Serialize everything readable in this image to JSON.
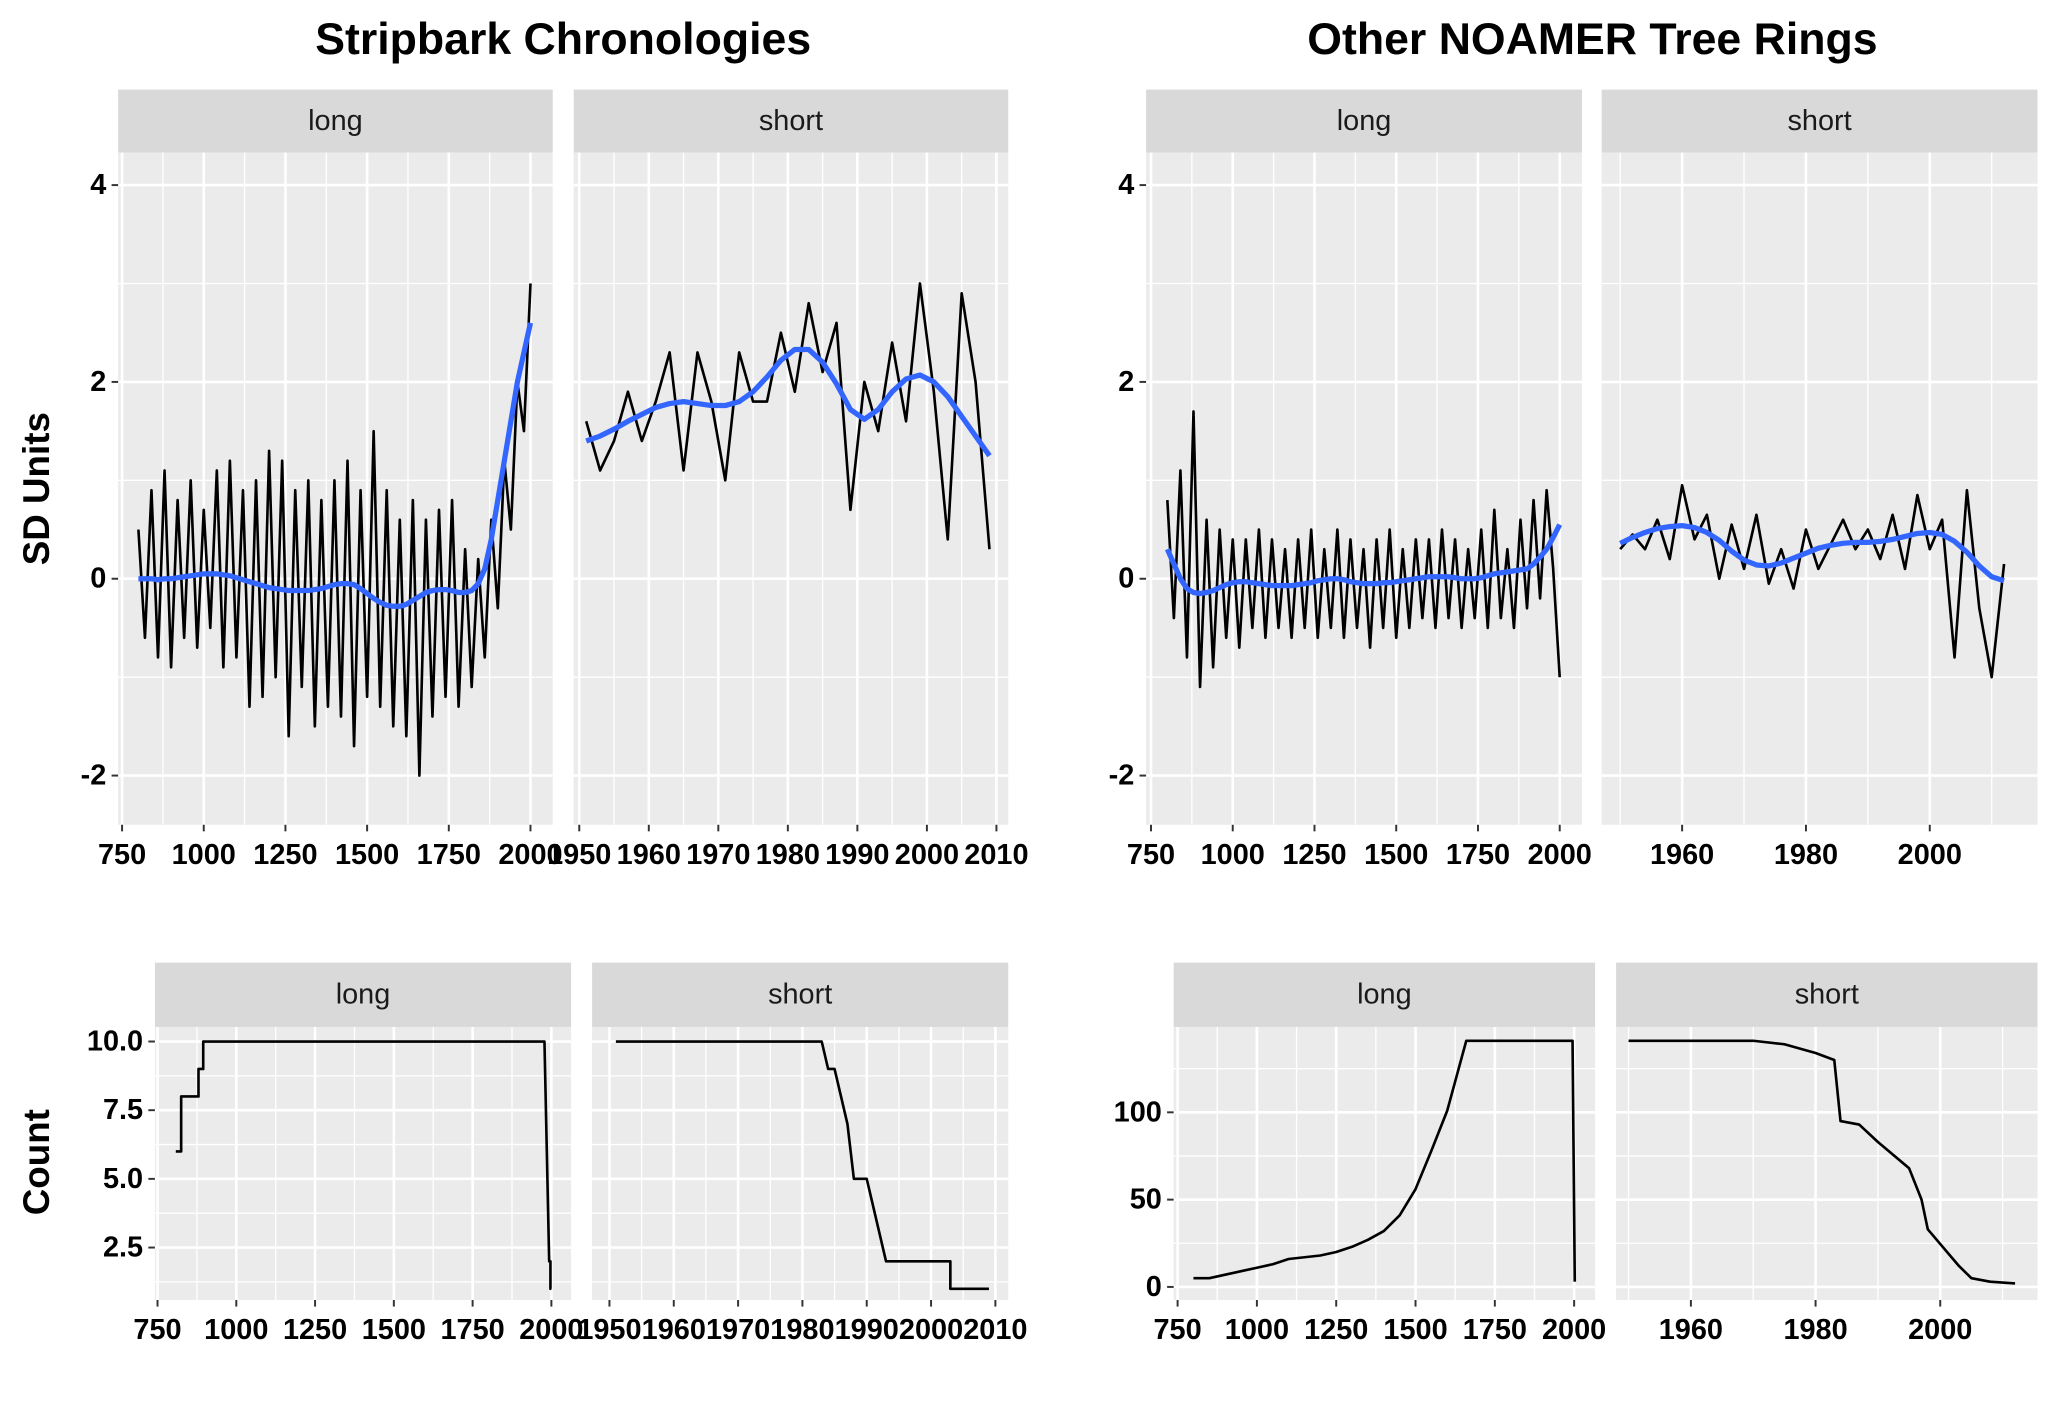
{
  "titles": [
    "Stripbark Chronologies",
    "Other NOAMER Tree Rings"
  ],
  "ylabels": [
    "SD Units",
    "Count"
  ],
  "chart_data": [
    {
      "type": "line",
      "strip": "long",
      "x": [
        800,
        820,
        840,
        860,
        880,
        900,
        920,
        940,
        960,
        980,
        1000,
        1020,
        1040,
        1060,
        1080,
        1100,
        1120,
        1140,
        1160,
        1180,
        1200,
        1220,
        1240,
        1260,
        1280,
        1300,
        1320,
        1340,
        1360,
        1380,
        1400,
        1420,
        1440,
        1460,
        1480,
        1500,
        1520,
        1540,
        1560,
        1580,
        1600,
        1620,
        1640,
        1660,
        1680,
        1700,
        1720,
        1740,
        1760,
        1780,
        1800,
        1820,
        1840,
        1860,
        1880,
        1900,
        1920,
        1940,
        1960,
        1980,
        2000
      ],
      "series": [
        {
          "color": "#000000",
          "values": [
            0.5,
            -0.6,
            0.9,
            -0.8,
            1.1,
            -0.9,
            0.8,
            -0.6,
            1.0,
            -0.7,
            0.7,
            -0.5,
            1.1,
            -0.9,
            1.2,
            -0.8,
            0.9,
            -1.3,
            1.0,
            -1.2,
            1.3,
            -1.0,
            1.2,
            -1.6,
            0.9,
            -1.1,
            1.0,
            -1.5,
            0.8,
            -1.3,
            1.0,
            -1.4,
            1.2,
            -1.7,
            0.9,
            -1.2,
            1.5,
            -1.3,
            0.9,
            -1.5,
            0.6,
            -1.6,
            0.8,
            -2.0,
            0.6,
            -1.4,
            0.7,
            -1.2,
            0.8,
            -1.3,
            0.3,
            -1.1,
            0.2,
            -0.8,
            0.6,
            -0.3,
            1.2,
            0.5,
            2.0,
            1.5,
            3.0
          ]
        },
        {
          "color": "#3366ff",
          "values": [
            0,
            0,
            0,
            -0.01,
            0,
            0,
            0.01,
            0.02,
            0.03,
            0.04,
            0.05,
            0.05,
            0.05,
            0.04,
            0.03,
            0.01,
            -0.01,
            -0.03,
            -0.05,
            -0.07,
            -0.09,
            -0.1,
            -0.11,
            -0.12,
            -0.12,
            -0.12,
            -0.12,
            -0.11,
            -0.1,
            -0.08,
            -0.06,
            -0.05,
            -0.05,
            -0.06,
            -0.1,
            -0.15,
            -0.2,
            -0.24,
            -0.27,
            -0.28,
            -0.28,
            -0.26,
            -0.22,
            -0.18,
            -0.14,
            -0.12,
            -0.11,
            -0.11,
            -0.12,
            -0.14,
            -0.14,
            -0.12,
            -0.05,
            0.1,
            0.4,
            0.8,
            1.2,
            1.6,
            2.0,
            2.3,
            2.6
          ]
        }
      ],
      "xlim": [
        738,
        2068
      ],
      "xticks": [
        750,
        1000,
        1250,
        1500,
        1750,
        2000
      ],
      "ylim": [
        -2.5,
        4.33
      ],
      "yticks": [
        -2,
        0,
        2,
        4
      ],
      "grid": true,
      "show_yticks": true
    },
    {
      "type": "line",
      "strip": "short",
      "x": [
        1951,
        1953,
        1955,
        1957,
        1959,
        1961,
        1963,
        1965,
        1967,
        1969,
        1971,
        1973,
        1975,
        1977,
        1979,
        1981,
        1983,
        1985,
        1987,
        1989,
        1991,
        1993,
        1995,
        1997,
        1999,
        2001,
        2003,
        2005,
        2007,
        2009
      ],
      "series": [
        {
          "color": "#000000",
          "values": [
            1.6,
            1.1,
            1.4,
            1.9,
            1.4,
            1.8,
            2.3,
            1.1,
            2.3,
            1.8,
            1.0,
            2.3,
            1.8,
            1.8,
            2.5,
            1.9,
            2.8,
            2.1,
            2.6,
            0.7,
            2.0,
            1.5,
            2.4,
            1.6,
            3.0,
            1.9,
            0.4,
            2.9,
            2.0,
            0.3
          ]
        },
        {
          "color": "#3366ff",
          "values": [
            1.4,
            1.45,
            1.52,
            1.6,
            1.67,
            1.74,
            1.78,
            1.8,
            1.78,
            1.76,
            1.76,
            1.8,
            1.9,
            2.05,
            2.22,
            2.33,
            2.33,
            2.2,
            1.98,
            1.72,
            1.62,
            1.72,
            1.9,
            2.03,
            2.07,
            2.0,
            1.85,
            1.65,
            1.45,
            1.25
          ]
        }
      ],
      "xlim": [
        1949.2,
        2011.7
      ],
      "xticks": [
        1950,
        1960,
        1970,
        1980,
        1990,
        2000,
        2010
      ],
      "ylim": [
        -2.5,
        4.33
      ],
      "yticks": [
        -2,
        0,
        2,
        4
      ],
      "grid": true,
      "show_yticks": false
    },
    {
      "type": "line",
      "strip": "long",
      "x": [
        800,
        820,
        840,
        860,
        880,
        900,
        920,
        940,
        960,
        980,
        1000,
        1020,
        1040,
        1060,
        1080,
        1100,
        1120,
        1140,
        1160,
        1180,
        1200,
        1220,
        1240,
        1260,
        1280,
        1300,
        1320,
        1340,
        1360,
        1380,
        1400,
        1420,
        1440,
        1460,
        1480,
        1500,
        1520,
        1540,
        1560,
        1580,
        1600,
        1620,
        1640,
        1660,
        1680,
        1700,
        1720,
        1740,
        1760,
        1780,
        1800,
        1820,
        1840,
        1860,
        1880,
        1900,
        1920,
        1940,
        1960,
        1980,
        2000
      ],
      "series": [
        {
          "color": "#000000",
          "values": [
            0.8,
            -0.4,
            1.1,
            -0.8,
            1.7,
            -1.1,
            0.6,
            -0.9,
            0.5,
            -0.6,
            0.4,
            -0.7,
            0.4,
            -0.5,
            0.5,
            -0.6,
            0.4,
            -0.5,
            0.3,
            -0.6,
            0.4,
            -0.5,
            0.5,
            -0.6,
            0.3,
            -0.5,
            0.5,
            -0.6,
            0.4,
            -0.5,
            0.3,
            -0.7,
            0.4,
            -0.5,
            0.5,
            -0.6,
            0.3,
            -0.5,
            0.4,
            -0.4,
            0.4,
            -0.5,
            0.5,
            -0.4,
            0.4,
            -0.5,
            0.3,
            -0.4,
            0.5,
            -0.5,
            0.7,
            -0.4,
            0.3,
            -0.5,
            0.6,
            -0.3,
            0.8,
            -0.2,
            0.9,
            0.1,
            -1.0
          ]
        },
        {
          "color": "#3366ff",
          "values": [
            0.3,
            0.15,
            0.0,
            -0.1,
            -0.14,
            -0.15,
            -0.14,
            -0.12,
            -0.09,
            -0.06,
            -0.04,
            -0.03,
            -0.03,
            -0.04,
            -0.05,
            -0.06,
            -0.07,
            -0.07,
            -0.07,
            -0.07,
            -0.06,
            -0.05,
            -0.04,
            -0.02,
            -0.01,
            0,
            0,
            -0.01,
            -0.03,
            -0.04,
            -0.05,
            -0.05,
            -0.05,
            -0.04,
            -0.04,
            -0.03,
            -0.02,
            -0.01,
            0,
            0.01,
            0.02,
            0.02,
            0.02,
            0.02,
            0.01,
            0,
            0,
            0,
            0.01,
            0.03,
            0.05,
            0.06,
            0.07,
            0.08,
            0.09,
            0.1,
            0.15,
            0.22,
            0.3,
            0.42,
            0.55
          ]
        }
      ],
      "xlim": [
        735,
        2068
      ],
      "xticks": [
        750,
        1000,
        1250,
        1500,
        1750,
        2000
      ],
      "ylim": [
        -2.5,
        4.33
      ],
      "yticks": [
        -2,
        0,
        2,
        4
      ],
      "grid": true,
      "show_yticks": true
    },
    {
      "type": "line",
      "strip": "short",
      "x": [
        1950,
        1952,
        1954,
        1956,
        1958,
        1960,
        1962,
        1964,
        1966,
        1968,
        1970,
        1972,
        1974,
        1976,
        1978,
        1980,
        1982,
        1984,
        1986,
        1988,
        1990,
        1992,
        1994,
        1996,
        1998,
        2000,
        2002,
        2004,
        2006,
        2008,
        2010,
        2012
      ],
      "series": [
        {
          "color": "#000000",
          "values": [
            0.3,
            0.45,
            0.3,
            0.6,
            0.2,
            0.95,
            0.4,
            0.65,
            0.0,
            0.55,
            0.1,
            0.65,
            -0.05,
            0.3,
            -0.1,
            0.5,
            0.1,
            0.35,
            0.6,
            0.3,
            0.5,
            0.2,
            0.65,
            0.1,
            0.85,
            0.3,
            0.6,
            -0.8,
            0.9,
            -0.3,
            -1.0,
            0.15
          ]
        },
        {
          "color": "#3366ff",
          "values": [
            0.36,
            0.42,
            0.47,
            0.51,
            0.53,
            0.54,
            0.52,
            0.47,
            0.39,
            0.28,
            0.19,
            0.14,
            0.13,
            0.16,
            0.21,
            0.26,
            0.31,
            0.34,
            0.36,
            0.37,
            0.37,
            0.38,
            0.4,
            0.43,
            0.46,
            0.47,
            0.45,
            0.38,
            0.27,
            0.13,
            0.02,
            -0.02
          ]
        }
      ],
      "xlim": [
        1947,
        2017.4
      ],
      "xticks": [
        1960,
        1980,
        2000
      ],
      "ylim": [
        -2.5,
        4.33
      ],
      "yticks": [
        -2,
        0,
        2,
        4
      ],
      "grid": true,
      "show_yticks": false
    },
    {
      "type": "line",
      "strip": "long",
      "x": [
        808,
        825,
        825,
        880,
        880,
        895,
        895,
        1978,
        1993,
        1997,
        1997,
        2000
      ],
      "series": [
        {
          "color": "#000000",
          "values": [
            6,
            6,
            8,
            8,
            9,
            9,
            10,
            10,
            2,
            2,
            1,
            1
          ]
        }
      ],
      "xlim": [
        741.7,
        2062.5
      ],
      "xticks": [
        750,
        1000,
        1250,
        1500,
        1750,
        2000
      ],
      "ylim": [
        0.59,
        10.53
      ],
      "yticks": [
        {
          "value": 2.5,
          "label": "2.5"
        },
        {
          "value": 5,
          "label": "5.0"
        },
        {
          "value": 7.5,
          "label": "7.5"
        },
        {
          "value": 10,
          "label": "10.0"
        }
      ],
      "grid": true,
      "show_yticks": true
    },
    {
      "type": "line",
      "strip": "short",
      "x": [
        1951,
        1983,
        1984,
        1984,
        1985,
        1986,
        1987,
        1988,
        1990,
        1991,
        1992,
        1993,
        2003,
        2003,
        2009
      ],
      "series": [
        {
          "color": "#000000",
          "values": [
            10,
            10,
            9,
            9,
            9,
            8,
            7,
            5,
            5,
            4,
            3,
            2,
            2,
            1,
            1
          ]
        }
      ],
      "xlim": [
        1947.3,
        2012
      ],
      "xticks": [
        1950,
        1960,
        1970,
        1980,
        1990,
        2000,
        2010
      ],
      "ylim": [
        0.59,
        10.53
      ],
      "yticks": [
        {
          "value": 2.5,
          "label": "2.5"
        },
        {
          "value": 5,
          "label": "5.0"
        },
        {
          "value": 7.5,
          "label": "7.5"
        },
        {
          "value": 10,
          "label": "10.0"
        }
      ],
      "grid": true,
      "show_yticks": false
    },
    {
      "type": "line",
      "strip": "long",
      "x": [
        800,
        850,
        900,
        950,
        1000,
        1050,
        1100,
        1150,
        1200,
        1250,
        1300,
        1350,
        1400,
        1450,
        1500,
        1550,
        1600,
        1660,
        1995,
        2002
      ],
      "series": [
        {
          "color": "#000000",
          "values": [
            5,
            5,
            7,
            9,
            11,
            13,
            16,
            17,
            18,
            20,
            23,
            27,
            32,
            41,
            56,
            78,
            101,
            141,
            141,
            3
          ]
        }
      ],
      "xlim": [
        737.6,
        2066
      ],
      "xticks": [
        750,
        1000,
        1250,
        1500,
        1750,
        2000
      ],
      "ylim": [
        -7.5,
        148.9
      ],
      "yticks": [
        0,
        50,
        100
      ],
      "grid": true,
      "show_yticks": true
    },
    {
      "type": "line",
      "strip": "short",
      "x": [
        1950,
        1970,
        1975,
        1980,
        1983,
        1984,
        1987,
        1990,
        1995,
        1997,
        1998,
        2003,
        2005,
        2008,
        2012
      ],
      "series": [
        {
          "color": "#000000",
          "values": [
            141,
            141,
            139,
            134,
            130,
            95,
            93,
            83,
            68,
            50,
            33,
            12,
            5,
            3,
            2
          ]
        }
      ],
      "xlim": [
        1948,
        2015.6
      ],
      "xticks": [
        1960,
        1980,
        2000
      ],
      "ylim": [
        -7.5,
        148.9
      ],
      "yticks": [
        0,
        50,
        100
      ],
      "grid": true,
      "show_yticks": false
    }
  ]
}
